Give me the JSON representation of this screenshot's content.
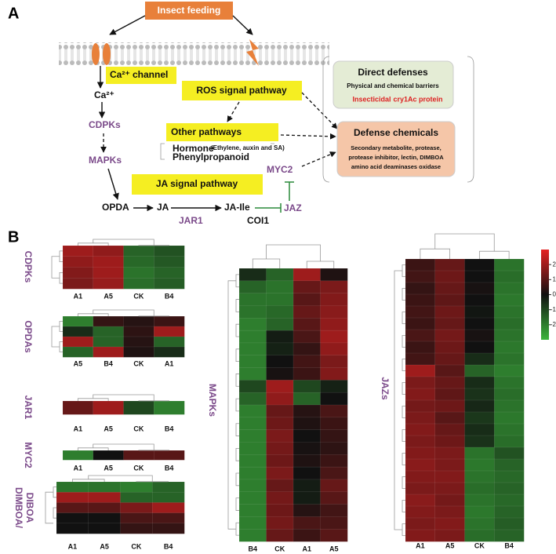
{
  "panel_a": {
    "label": "A",
    "insect_feeding": "Insect feeding",
    "ca_channel": "Ca²⁺ channel",
    "ca": "Ca²⁺",
    "cdpks": "CDPKs",
    "mapks": "MAPKs",
    "ros": "ROS signal pathway",
    "other": "Other pathways",
    "hormone": "Hormone",
    "hormone_detail": "(Ethylene, auxin and SA)",
    "phenylpropanoid": "Phenylpropanoid",
    "ja_pathway": "JA signal pathway",
    "myc2": "MYC2",
    "opda": "OPDA",
    "ja": "JA",
    "ja_ile": "JA-Ile",
    "jaz": "JAZ",
    "jar1": "JAR1",
    "coi1": "COI1",
    "direct_defenses": {
      "title": "Direct defenses",
      "text": "Physical and chemical barriers",
      "red1": "Insecticidal",
      "red2": "cry1Ac protein"
    },
    "defense_chemicals": {
      "title": "Defense chemicals",
      "lines": [
        "Secondary metabolite, protease,",
        "protease inhibitor, lectin, DIMBOA",
        "amino acid deaminases oxidase"
      ]
    }
  },
  "panel_b": {
    "label": "B",
    "colorbar": {
      "lim": [
        -3,
        3
      ],
      "ticks": [
        2,
        1,
        0,
        -1,
        -2
      ],
      "colors": [
        "#3cb43c",
        "#111111",
        "#e52222"
      ]
    },
    "heatmaps": [
      {
        "label": [
          "CDPKs"
        ],
        "columns": [
          "A1",
          "A5",
          "CK",
          "B4"
        ],
        "values": [
          [
            2,
            1.8,
            -1.5,
            -1.2
          ],
          [
            1.8,
            2,
            -1.6,
            -1.3
          ],
          [
            1.6,
            2,
            -1.8,
            -1.5
          ],
          [
            1.5,
            1.9,
            -1.7,
            -1.4
          ]
        ]
      },
      {
        "label": [
          "OPDAs"
        ],
        "columns": [
          "A5",
          "B4",
          "CK",
          "A1"
        ],
        "values": [
          [
            -2,
            0.5,
            0.3,
            0.6
          ],
          [
            -0.5,
            -1.5,
            0.4,
            2
          ],
          [
            2,
            -1.5,
            0.3,
            -1.5
          ],
          [
            -1.5,
            2,
            0.2,
            -0.5
          ]
        ]
      },
      {
        "label": [
          "JAR1"
        ],
        "columns": [
          "A1",
          "A5",
          "CK",
          "B4"
        ],
        "values": [
          [
            1.2,
            2,
            -1,
            -2
          ]
        ]
      },
      {
        "label": [
          "MYC2"
        ],
        "columns": [
          "A1",
          "A5",
          "CK",
          "B4"
        ],
        "values": [
          [
            -2,
            0,
            1,
            1
          ]
        ]
      },
      {
        "label": [
          "DIMBOA/",
          "DIBOA"
        ],
        "columns": [
          "A1",
          "A5",
          "CK",
          "B4"
        ],
        "values": [
          [
            -1.8,
            -1.8,
            -2,
            -1.5
          ],
          [
            2,
            2,
            -1.5,
            -1.5
          ],
          [
            1,
            1,
            1.5,
            2
          ],
          [
            0,
            0,
            0.8,
            0.8
          ],
          [
            0,
            0,
            0.5,
            0.5
          ]
        ]
      },
      {
        "label": [
          "MAPKs"
        ],
        "columns": [
          "B4",
          "CK",
          "A1",
          "A5"
        ],
        "values": [
          [
            -0.5,
            -1.5,
            2,
            0.2
          ],
          [
            -1.5,
            -1.8,
            1.2,
            1.5
          ],
          [
            -1.8,
            -1.8,
            1,
            1.6
          ],
          [
            -1.8,
            -1.6,
            1.2,
            1.7
          ],
          [
            -2,
            -1.5,
            1,
            1.8
          ],
          [
            -2,
            -0.2,
            0.8,
            2
          ],
          [
            -2,
            -0.3,
            0.5,
            1.8
          ],
          [
            -2,
            0,
            0.7,
            1.5
          ],
          [
            -2,
            0.1,
            0.6,
            1.6
          ],
          [
            -1,
            2,
            -1,
            -0.3
          ],
          [
            -1.5,
            1.8,
            -1.5,
            0
          ],
          [
            -2,
            1.2,
            0.3,
            0.8
          ],
          [
            -2,
            1.3,
            0.2,
            0.6
          ],
          [
            -2,
            1.5,
            0,
            0.5
          ],
          [
            -2,
            1.4,
            0.1,
            0.4
          ],
          [
            -2,
            1.3,
            0.2,
            0.6
          ],
          [
            -2,
            1.5,
            0,
            0.8
          ],
          [
            -2,
            1.2,
            -0.2,
            1.2
          ],
          [
            -2,
            1.4,
            -0.2,
            1
          ],
          [
            -2,
            1.3,
            0.3,
            0.7
          ],
          [
            -2,
            1.4,
            0.8,
            0.8
          ],
          [
            -2,
            1.2,
            0.6,
            1
          ]
        ]
      },
      {
        "label": [
          "JAZs"
        ],
        "columns": [
          "A1",
          "A5",
          "CK",
          "B4"
        ],
        "values": [
          [
            0.6,
            1.2,
            0,
            -1.8
          ],
          [
            0.7,
            1.3,
            0,
            -1.7
          ],
          [
            0.5,
            1.2,
            0.1,
            -1.8
          ],
          [
            0.6,
            1.1,
            0,
            -1.9
          ],
          [
            0.7,
            1.3,
            -0.1,
            -1.8
          ],
          [
            0.6,
            1.2,
            0,
            -1.7
          ],
          [
            0.8,
            1.4,
            0.1,
            -1.8
          ],
          [
            0.6,
            1.3,
            0,
            -1.9
          ],
          [
            0.7,
            1.2,
            -0.5,
            -1.8
          ],
          [
            2,
            1,
            -1.5,
            -2
          ],
          [
            1.5,
            1.2,
            -0.5,
            -1.8
          ],
          [
            1.6,
            1.1,
            -0.6,
            -1.7
          ],
          [
            1.4,
            1.3,
            -0.4,
            -1.8
          ],
          [
            1.5,
            1,
            -0.7,
            -1.9
          ],
          [
            1.6,
            1.2,
            -0.5,
            -1.8
          ],
          [
            1.5,
            1.3,
            -0.6,
            -1.7
          ],
          [
            1.6,
            1.5,
            -1.8,
            -1.2
          ],
          [
            1.7,
            1.5,
            -1.9,
            -1.5
          ],
          [
            1.6,
            1.6,
            -1.8,
            -1.6
          ],
          [
            1.5,
            1.5,
            -1.7,
            -1.5
          ],
          [
            1.7,
            1.4,
            -1.8,
            -1.6
          ],
          [
            1.6,
            1.5,
            -1.9,
            -1.5
          ],
          [
            1.5,
            1.6,
            -1.8,
            -1.4
          ],
          [
            1.6,
            1.5,
            -1.7,
            -1.5
          ]
        ]
      }
    ]
  }
}
